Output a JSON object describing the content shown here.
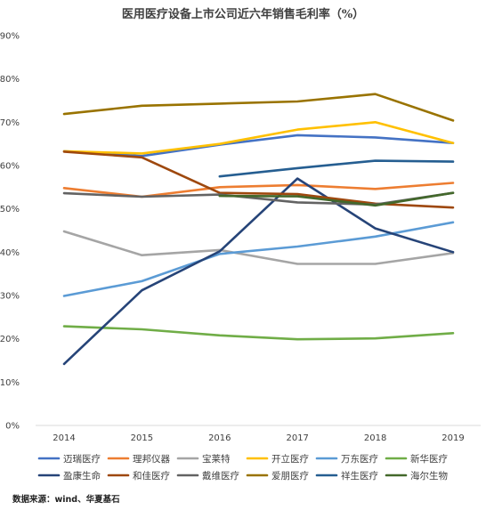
{
  "chart_data": {
    "type": "line",
    "title": "医用医疗设备上市公司近六年销售毛利率（%）",
    "x": [
      "2014",
      "2015",
      "2016",
      "2017",
      "2018",
      "2019"
    ],
    "ylim": [
      0,
      90
    ],
    "yticks": [
      0,
      10,
      20,
      30,
      40,
      50,
      60,
      70,
      80,
      90
    ],
    "ytick_labels": [
      "0%",
      "10%",
      "20%",
      "30%",
      "40%",
      "50%",
      "60%",
      "70%",
      "80%",
      "90%"
    ],
    "grid": false,
    "legend_position": "bottom",
    "series": [
      {
        "name": "迈瑞医疗",
        "color": "#4472C4",
        "values": [
          63.3,
          62.2,
          64.8,
          67.0,
          66.5,
          65.2
        ]
      },
      {
        "name": "理邦仪器",
        "color": "#ED7D31",
        "values": [
          54.8,
          52.8,
          55.0,
          55.5,
          54.6,
          56.0
        ]
      },
      {
        "name": "宝莱特",
        "color": "#A5A5A5",
        "values": [
          44.8,
          39.3,
          40.5,
          37.3,
          37.3,
          39.8
        ]
      },
      {
        "name": "开立医疗",
        "color": "#FFC000",
        "values": [
          63.3,
          62.8,
          65.0,
          68.3,
          70.0,
          65.2
        ]
      },
      {
        "name": "万东医疗",
        "color": "#5B9BD5",
        "values": [
          29.9,
          33.3,
          39.6,
          41.3,
          43.6,
          46.9
        ]
      },
      {
        "name": "新华医疗",
        "color": "#70AD47",
        "values": [
          22.9,
          22.2,
          20.8,
          19.9,
          20.1,
          21.3
        ]
      },
      {
        "name": "盈康生命",
        "color": "#264478",
        "values": [
          14.2,
          31.2,
          40.2,
          57.0,
          45.5,
          40.0
        ]
      },
      {
        "name": "和佳医疗",
        "color": "#9E480E",
        "values": [
          63.2,
          61.9,
          53.7,
          53.4,
          51.2,
          50.3
        ]
      },
      {
        "name": "戴维医疗",
        "color": "#636363",
        "values": [
          53.6,
          52.8,
          53.3,
          51.5,
          51.0,
          53.7
        ]
      },
      {
        "name": "爱朋医疗",
        "color": "#997300",
        "values": [
          71.9,
          73.8,
          74.3,
          74.8,
          76.5,
          70.4
        ]
      },
      {
        "name": "祥生医疗",
        "color": "#255E91",
        "values": [
          null,
          null,
          57.5,
          59.4,
          61.1,
          60.9
        ]
      },
      {
        "name": "海尔生物",
        "color": "#43682B",
        "values": [
          null,
          null,
          53.0,
          52.9,
          50.8,
          53.7
        ]
      }
    ],
    "source": "数据来源：wind、华夏基石"
  }
}
